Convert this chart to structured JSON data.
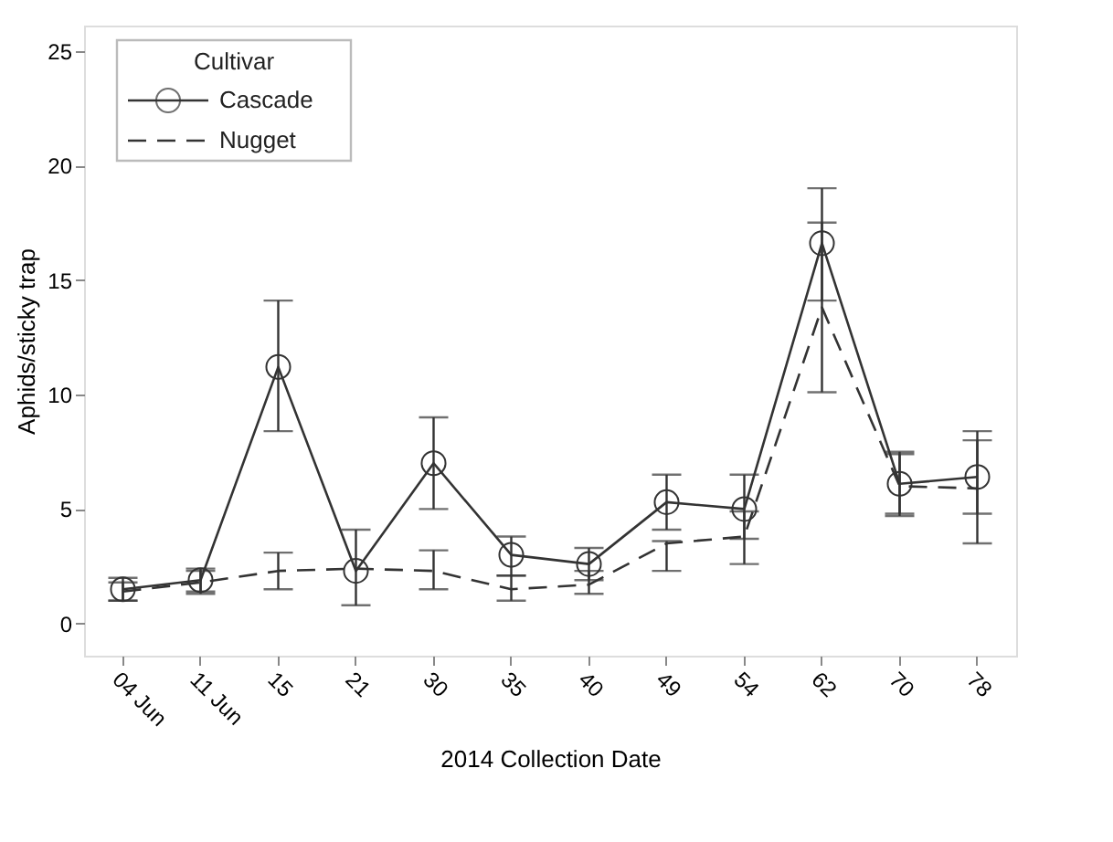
{
  "chart_data": {
    "type": "line",
    "xlabel": "2014 Collection Date",
    "ylabel": "Aphids/sticky trap",
    "legend_title": "Cultivar",
    "categories": [
      "04 Jun",
      "11 Jun",
      "15",
      "21",
      "30",
      "35",
      "40",
      "49",
      "54",
      "62",
      "70",
      "78"
    ],
    "ylim": [
      -1.4,
      26.1
    ],
    "yticks": [
      0,
      5,
      10,
      15,
      20,
      25
    ],
    "grid": false,
    "legend": "top left",
    "series": [
      {
        "name": "Cascade",
        "color": "#333333",
        "marker": "circle",
        "line_style": "solid",
        "values": [
          1.5,
          1.9,
          11.2,
          2.3,
          7.0,
          3.0,
          2.6,
          5.3,
          5.0,
          16.6,
          6.1,
          6.4
        ],
        "errors": [
          [
            1.0,
            2.0
          ],
          [
            1.4,
            2.4
          ],
          [
            8.4,
            14.1
          ],
          [
            0.8,
            4.1
          ],
          [
            5.0,
            9.0
          ],
          [
            2.1,
            3.8
          ],
          [
            1.9,
            3.3
          ],
          [
            4.1,
            6.5
          ],
          [
            3.7,
            6.5
          ],
          [
            14.1,
            19.0
          ],
          [
            4.7,
            7.5
          ],
          [
            4.8,
            8.0
          ]
        ]
      },
      {
        "name": "Nugget",
        "color": "#333333",
        "marker": "none",
        "line_style": "dashed",
        "values": [
          1.4,
          1.8,
          2.3,
          2.4,
          2.3,
          1.5,
          1.7,
          3.5,
          3.8,
          13.8,
          6.0,
          5.9
        ],
        "errors": [
          [
            1.0,
            1.8
          ],
          [
            1.3,
            2.3
          ],
          [
            1.5,
            3.1
          ],
          null,
          [
            1.5,
            3.2
          ],
          [
            1.0,
            2.1
          ],
          [
            1.3,
            2.3
          ],
          [
            2.3,
            3.6
          ],
          [
            2.6,
            4.9
          ],
          [
            10.1,
            17.5
          ],
          [
            4.8,
            7.4
          ],
          [
            3.5,
            8.4
          ]
        ]
      }
    ]
  }
}
